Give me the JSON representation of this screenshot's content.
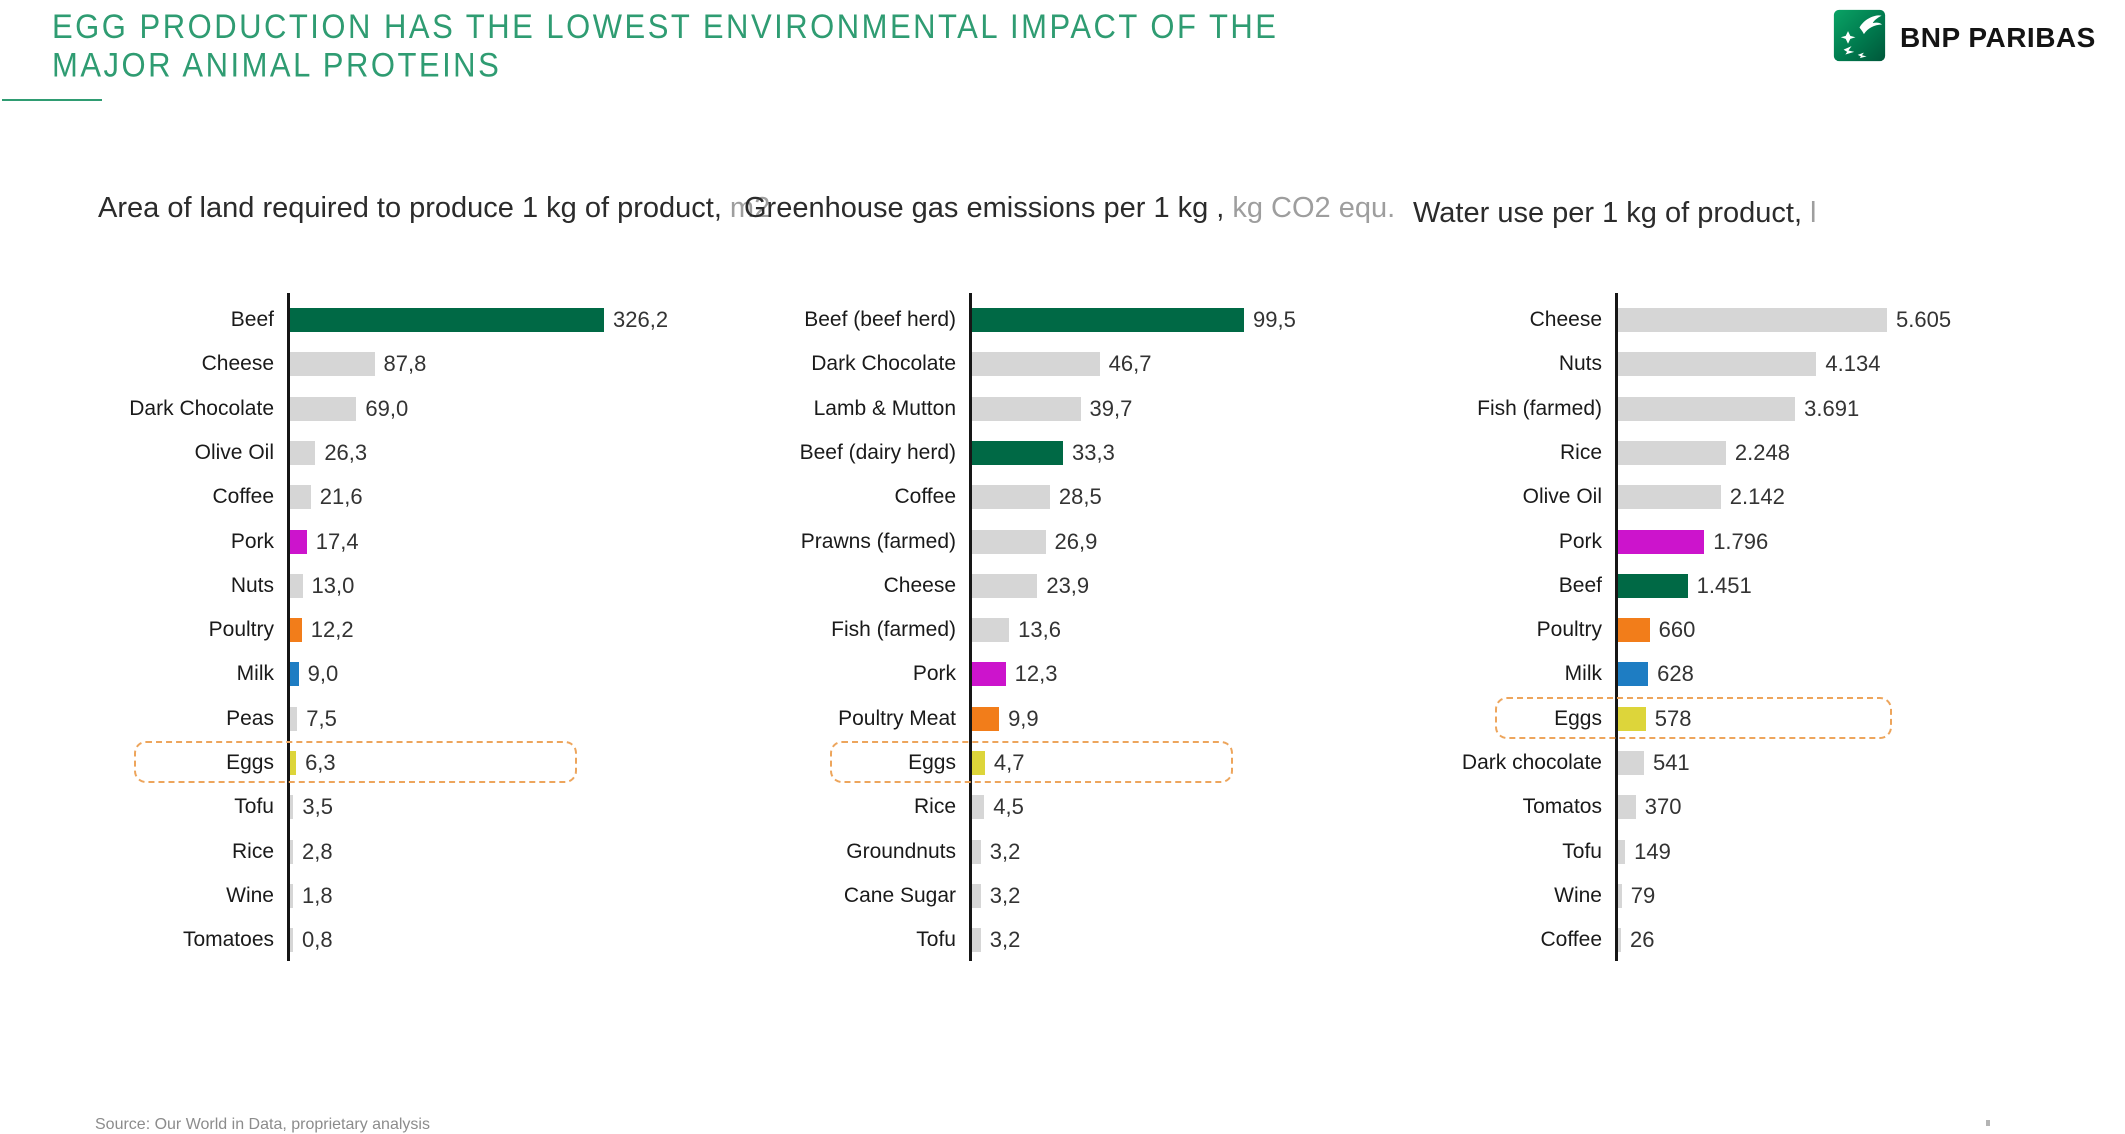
{
  "header": {
    "title_line1": "EGG PRODUCTION HAS THE LOWEST ENVIRONMENTAL IMPACT OF THE",
    "title_line2": "MAJOR ANIMAL PROTEINS",
    "brand": "BNP PARIBAS"
  },
  "footer": {
    "source": "Source: Our World in Data, proprietary analysis"
  },
  "colors": {
    "green": "#006945",
    "grey": "#D6D6D6",
    "magenta": "#CC14CC",
    "orange": "#F27D1A",
    "blue": "#1E7DC3",
    "yellow": "#DDD53A",
    "title_green": "#2F9C72",
    "highlight_border": "#EDA55C"
  },
  "chart_data": [
    {
      "type": "bar",
      "orientation": "horizontal",
      "title": "Area of land required to produce 1 kg of product,",
      "unit": "m2",
      "grid": false,
      "data_labels": true,
      "highlighted_category": "Eggs",
      "rows": [
        {
          "label": "Beef",
          "value": 326.2,
          "display": "326,2",
          "color": "green",
          "highlight": false
        },
        {
          "label": "Cheese",
          "value": 87.8,
          "display": "87,8",
          "color": "grey",
          "highlight": false
        },
        {
          "label": "Dark Chocolate",
          "value": 69.0,
          "display": "69,0",
          "color": "grey",
          "highlight": false
        },
        {
          "label": "Olive Oil",
          "value": 26.3,
          "display": "26,3",
          "color": "grey",
          "highlight": false
        },
        {
          "label": "Coffee",
          "value": 21.6,
          "display": "21,6",
          "color": "grey",
          "highlight": false
        },
        {
          "label": "Pork",
          "value": 17.4,
          "display": "17,4",
          "color": "magenta",
          "highlight": false
        },
        {
          "label": "Nuts",
          "value": 13.0,
          "display": "13,0",
          "color": "grey",
          "highlight": false
        },
        {
          "label": "Poultry",
          "value": 12.2,
          "display": "12,2",
          "color": "orange",
          "highlight": false
        },
        {
          "label": "Milk",
          "value": 9.0,
          "display": "9,0",
          "color": "blue",
          "highlight": false
        },
        {
          "label": "Peas",
          "value": 7.5,
          "display": "7,5",
          "color": "grey",
          "highlight": false
        },
        {
          "label": "Eggs",
          "value": 6.3,
          "display": "6,3",
          "color": "yellow",
          "highlight": true
        },
        {
          "label": "Tofu",
          "value": 3.5,
          "display": "3,5",
          "color": "grey",
          "highlight": false
        },
        {
          "label": "Rice",
          "value": 2.8,
          "display": "2,8",
          "color": "grey",
          "highlight": false
        },
        {
          "label": "Wine",
          "value": 1.8,
          "display": "1,8",
          "color": "grey",
          "highlight": false
        },
        {
          "label": "Tomatoes",
          "value": 0.8,
          "display": "0,8",
          "color": "grey",
          "highlight": false
        }
      ]
    },
    {
      "type": "bar",
      "orientation": "horizontal",
      "title": "Greenhouse gas emissions per 1 kg ,",
      "unit": "kg CO2 equ.",
      "grid": false,
      "data_labels": true,
      "highlighted_category": "Eggs",
      "rows": [
        {
          "label": "Beef (beef herd)",
          "value": 99.5,
          "display": "99,5",
          "color": "green",
          "highlight": false
        },
        {
          "label": "Dark Chocolate",
          "value": 46.7,
          "display": "46,7",
          "color": "grey",
          "highlight": false
        },
        {
          "label": "Lamb & Mutton",
          "value": 39.7,
          "display": "39,7",
          "color": "grey",
          "highlight": false
        },
        {
          "label": "Beef (dairy herd)",
          "value": 33.3,
          "display": "33,3",
          "color": "green",
          "highlight": false
        },
        {
          "label": "Coffee",
          "value": 28.5,
          "display": "28,5",
          "color": "grey",
          "highlight": false
        },
        {
          "label": "Prawns (farmed)",
          "value": 26.9,
          "display": "26,9",
          "color": "grey",
          "highlight": false
        },
        {
          "label": "Cheese",
          "value": 23.9,
          "display": "23,9",
          "color": "grey",
          "highlight": false
        },
        {
          "label": "Fish (farmed)",
          "value": 13.6,
          "display": "13,6",
          "color": "grey",
          "highlight": false
        },
        {
          "label": "Pork",
          "value": 12.3,
          "display": "12,3",
          "color": "magenta",
          "highlight": false
        },
        {
          "label": "Poultry Meat",
          "value": 9.9,
          "display": "9,9",
          "color": "orange",
          "highlight": false
        },
        {
          "label": "Eggs",
          "value": 4.7,
          "display": "4,7",
          "color": "yellow",
          "highlight": true
        },
        {
          "label": "Rice",
          "value": 4.5,
          "display": "4,5",
          "color": "grey",
          "highlight": false
        },
        {
          "label": "Groundnuts",
          "value": 3.2,
          "display": "3,2",
          "color": "grey",
          "highlight": false
        },
        {
          "label": "Cane Sugar",
          "value": 3.2,
          "display": "3,2",
          "color": "grey",
          "highlight": false
        },
        {
          "label": "Tofu",
          "value": 3.2,
          "display": "3,2",
          "color": "grey",
          "highlight": false
        }
      ]
    },
    {
      "type": "bar",
      "orientation": "horizontal",
      "title": "Water use per 1 kg of product,",
      "unit": "l",
      "grid": false,
      "data_labels": true,
      "highlighted_category": "Eggs",
      "rows": [
        {
          "label": "Cheese",
          "value": 5605,
          "display": "5.605",
          "color": "grey",
          "highlight": false
        },
        {
          "label": "Nuts",
          "value": 4134,
          "display": "4.134",
          "color": "grey",
          "highlight": false
        },
        {
          "label": "Fish (farmed)",
          "value": 3691,
          "display": "3.691",
          "color": "grey",
          "highlight": false
        },
        {
          "label": "Rice",
          "value": 2248,
          "display": "2.248",
          "color": "grey",
          "highlight": false
        },
        {
          "label": "Olive Oil",
          "value": 2142,
          "display": "2.142",
          "color": "grey",
          "highlight": false
        },
        {
          "label": "Pork",
          "value": 1796,
          "display": "1.796",
          "color": "magenta",
          "highlight": false
        },
        {
          "label": "Beef",
          "value": 1451,
          "display": "1.451",
          "color": "green",
          "highlight": false
        },
        {
          "label": "Poultry",
          "value": 660,
          "display": "660",
          "color": "orange",
          "highlight": false
        },
        {
          "label": "Milk",
          "value": 628,
          "display": "628",
          "color": "blue",
          "highlight": false
        },
        {
          "label": "Eggs",
          "value": 578,
          "display": "578",
          "color": "yellow",
          "highlight": true
        },
        {
          "label": "Dark chocolate",
          "value": 541,
          "display": "541",
          "color": "grey",
          "highlight": false
        },
        {
          "label": "Tomatos",
          "value": 370,
          "display": "370",
          "color": "grey",
          "highlight": false
        },
        {
          "label": "Tofu",
          "value": 149,
          "display": "149",
          "color": "grey",
          "highlight": false
        },
        {
          "label": "Wine",
          "value": 79,
          "display": "79",
          "color": "grey",
          "highlight": false
        },
        {
          "label": "Coffee",
          "value": 26,
          "display": "26",
          "color": "grey",
          "highlight": false
        }
      ]
    }
  ]
}
